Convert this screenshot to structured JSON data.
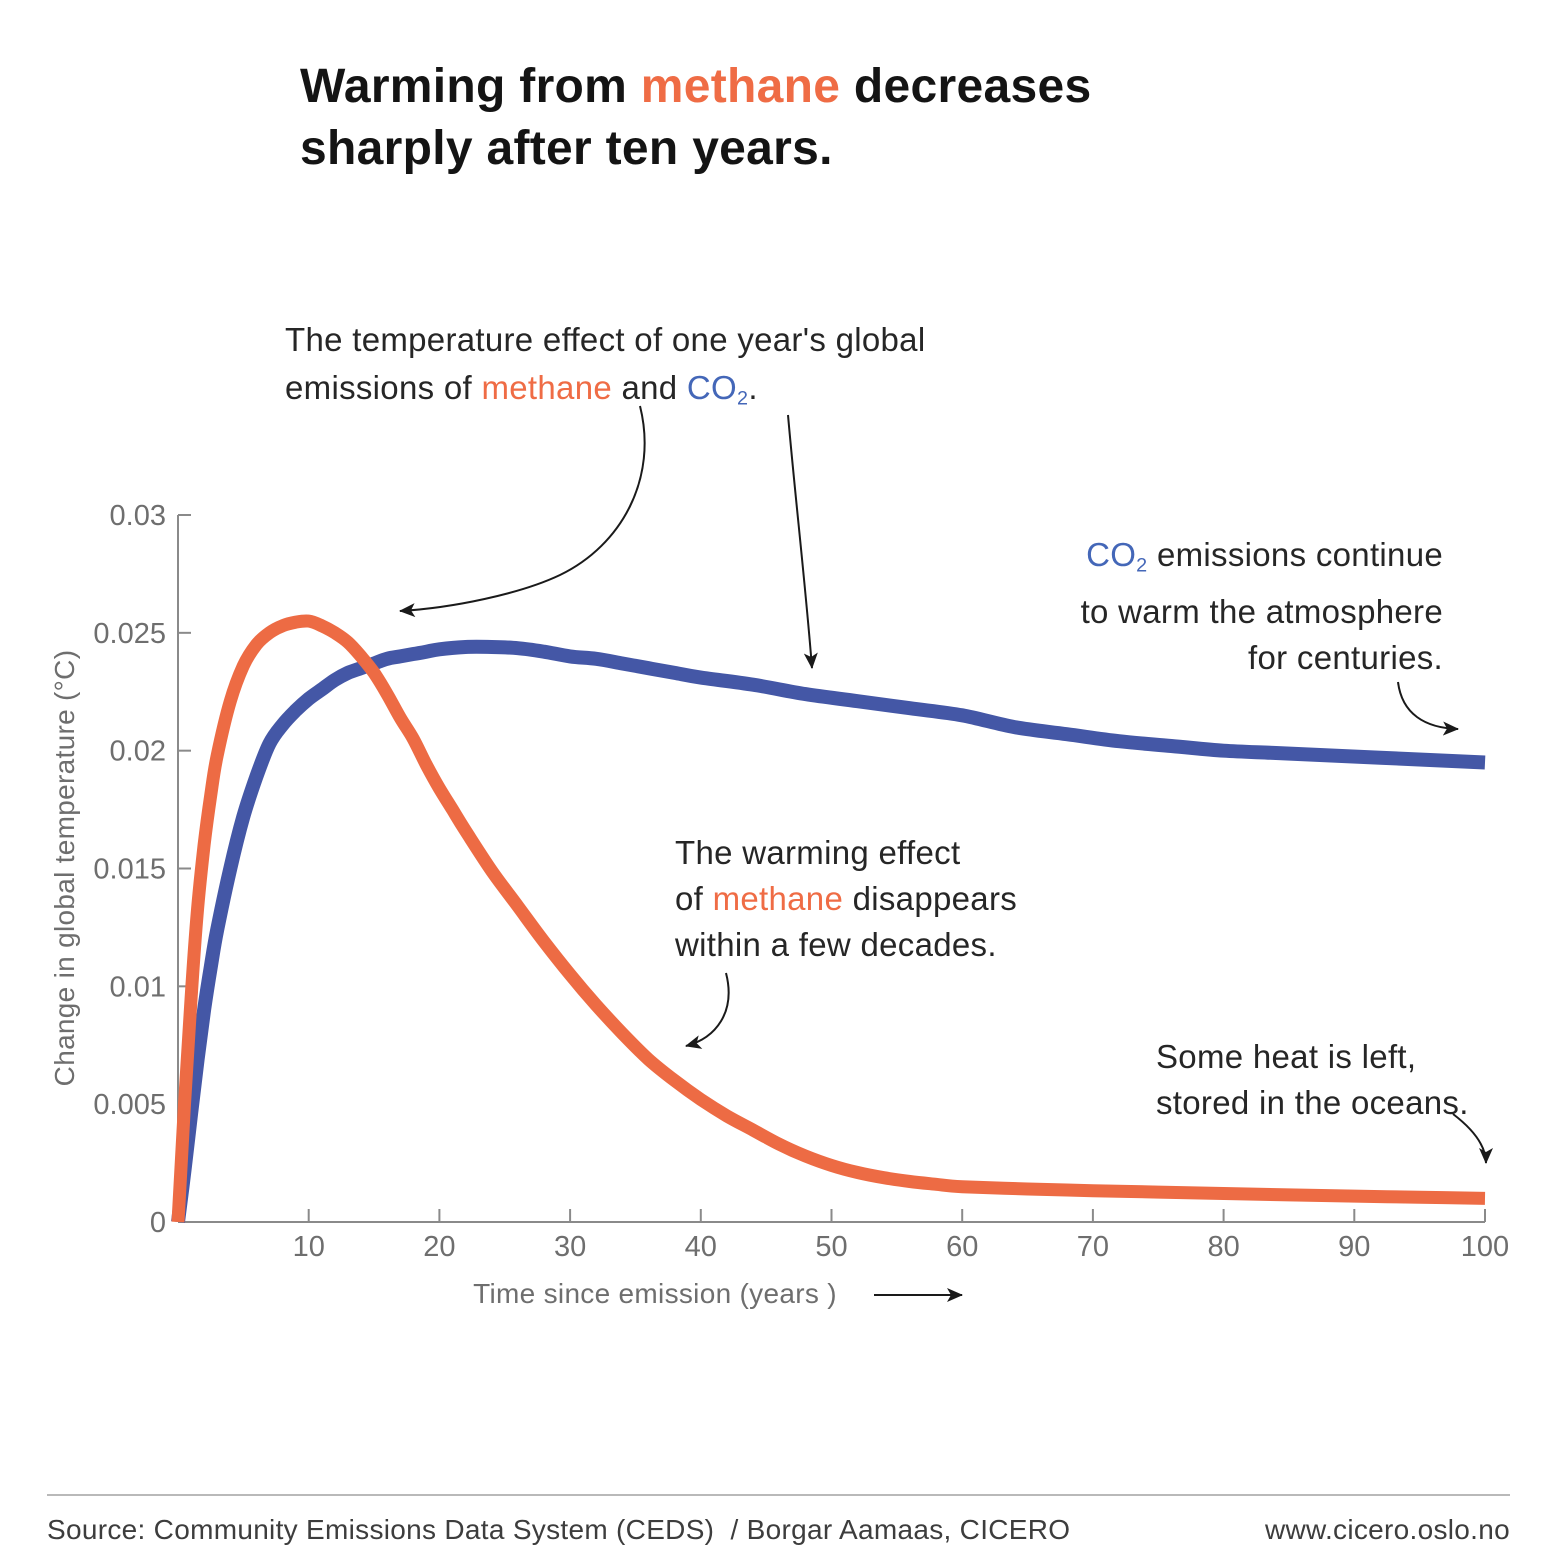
{
  "title": {
    "part1": "Warming from ",
    "highlight": "methane",
    "part2": " decreases",
    "line2": "sharply after ten years."
  },
  "annotations": {
    "intro": {
      "line1": "The temperature effect of one year's global",
      "line2_pre": "emissions of ",
      "methane": "methane",
      "line2_mid": " and ",
      "co2_base": "CO",
      "co2_sub": "2",
      "line2_end": "."
    },
    "co2": {
      "co2_base": "CO",
      "co2_sub": "2",
      "line1_rest": " emissions continue",
      "line2": "to warm the atmosphere",
      "line3": "for centuries."
    },
    "methane": {
      "line1": "The warming effect",
      "line2_pre": "of ",
      "methane": "methane",
      "line2_end": " disappears",
      "line3": "within a few decades."
    },
    "oceans": {
      "line1": "Some heat is left,",
      "line2": "stored in the oceans."
    }
  },
  "footer": {
    "source": "Source: Community Emissions Data System (CEDS)  / Borgar Aamaas, CICERO",
    "website": "www.cicero.oslo.no"
  },
  "colors": {
    "methane_curve": "#ED6B44",
    "co2_curve": "#4457A6",
    "methane_text": "#EF6C45",
    "co2_text": "#4467B8",
    "axis": "#8A8A8A",
    "tick_text": "#6E6E6E"
  },
  "chart_data": {
    "type": "line",
    "xlabel": "Time since emission (years )",
    "ylabel": "Change in global temperature (°C)",
    "xlim": [
      0,
      100
    ],
    "ylim": [
      0,
      0.03
    ],
    "grid": false,
    "legend": "none (annotated callouts instead)",
    "xticks": [
      10,
      20,
      30,
      40,
      50,
      60,
      70,
      80,
      90,
      100
    ],
    "yticks": [
      0,
      0.005,
      0.01,
      0.015,
      0.02,
      0.025,
      0.03
    ],
    "ytick_labels": [
      "0",
      "0.005",
      "0.01",
      "0.015",
      "0.02",
      "0.025",
      "0.03"
    ],
    "series": [
      {
        "name": "methane",
        "color": "#ED6B44",
        "peak": {
          "year": 10,
          "value": 0.0255
        },
        "points": [
          [
            0,
            0
          ],
          [
            0.5,
            0.005
          ],
          [
            1,
            0.0095
          ],
          [
            1.5,
            0.0133
          ],
          [
            2,
            0.016
          ],
          [
            2.5,
            0.0181
          ],
          [
            3,
            0.0198
          ],
          [
            4,
            0.0221
          ],
          [
            5,
            0.0236
          ],
          [
            6,
            0.0245
          ],
          [
            7,
            0.025
          ],
          [
            8,
            0.0253
          ],
          [
            9,
            0.02545
          ],
          [
            10,
            0.0255
          ],
          [
            11,
            0.0253
          ],
          [
            12,
            0.025
          ],
          [
            13,
            0.0246
          ],
          [
            14,
            0.024
          ],
          [
            15,
            0.0233
          ],
          [
            16,
            0.0224
          ],
          [
            17,
            0.0214
          ],
          [
            18,
            0.0205
          ],
          [
            19,
            0.0194
          ],
          [
            20,
            0.0184
          ],
          [
            21,
            0.0175
          ],
          [
            22,
            0.0166
          ],
          [
            24,
            0.0149
          ],
          [
            26,
            0.0134
          ],
          [
            28,
            0.0119
          ],
          [
            30,
            0.0105
          ],
          [
            32,
            0.0092
          ],
          [
            34,
            0.008
          ],
          [
            36,
            0.0069
          ],
          [
            38,
            0.006
          ],
          [
            40,
            0.0052
          ],
          [
            42,
            0.0045
          ],
          [
            44,
            0.0039
          ],
          [
            46,
            0.0033
          ],
          [
            48,
            0.0028
          ],
          [
            50,
            0.0024
          ],
          [
            52,
            0.0021
          ],
          [
            54,
            0.00188
          ],
          [
            56,
            0.00172
          ],
          [
            58,
            0.0016
          ],
          [
            60,
            0.0015
          ],
          [
            65,
            0.0014
          ],
          [
            70,
            0.00133
          ],
          [
            75,
            0.00127
          ],
          [
            80,
            0.00121
          ],
          [
            85,
            0.00115
          ],
          [
            90,
            0.0011
          ],
          [
            95,
            0.00105
          ],
          [
            100,
            0.001
          ]
        ]
      },
      {
        "name": "co2",
        "color": "#4457A6",
        "peak": {
          "year": 22,
          "value": 0.0244
        },
        "points": [
          [
            0,
            0
          ],
          [
            0.5,
            0.0022
          ],
          [
            1,
            0.0046
          ],
          [
            1.5,
            0.0069
          ],
          [
            2,
            0.009
          ],
          [
            2.5,
            0.0108
          ],
          [
            3,
            0.0124
          ],
          [
            4,
            0.015
          ],
          [
            5,
            0.0172
          ],
          [
            6,
            0.0189
          ],
          [
            7,
            0.0203
          ],
          [
            8,
            0.0211
          ],
          [
            9,
            0.0217
          ],
          [
            10,
            0.0222
          ],
          [
            11,
            0.0226
          ],
          [
            12,
            0.023
          ],
          [
            13,
            0.0233
          ],
          [
            14,
            0.0235
          ],
          [
            15,
            0.0237
          ],
          [
            16,
            0.0239
          ],
          [
            17,
            0.024
          ],
          [
            18,
            0.0241
          ],
          [
            19,
            0.0242
          ],
          [
            20,
            0.0243
          ],
          [
            22,
            0.0244
          ],
          [
            24,
            0.0244
          ],
          [
            26,
            0.02435
          ],
          [
            28,
            0.0242
          ],
          [
            30,
            0.024
          ],
          [
            32,
            0.0239
          ],
          [
            34,
            0.0237
          ],
          [
            36,
            0.0235
          ],
          [
            38,
            0.0233
          ],
          [
            40,
            0.0231
          ],
          [
            44,
            0.0228
          ],
          [
            48,
            0.0224
          ],
          [
            52,
            0.0221
          ],
          [
            56,
            0.0218
          ],
          [
            60,
            0.0215
          ],
          [
            64,
            0.021
          ],
          [
            68,
            0.0207
          ],
          [
            72,
            0.0204
          ],
          [
            76,
            0.0202
          ],
          [
            80,
            0.02
          ],
          [
            84,
            0.0199
          ],
          [
            88,
            0.0198
          ],
          [
            92,
            0.0197
          ],
          [
            96,
            0.0196
          ],
          [
            100,
            0.0195
          ]
        ]
      }
    ]
  }
}
